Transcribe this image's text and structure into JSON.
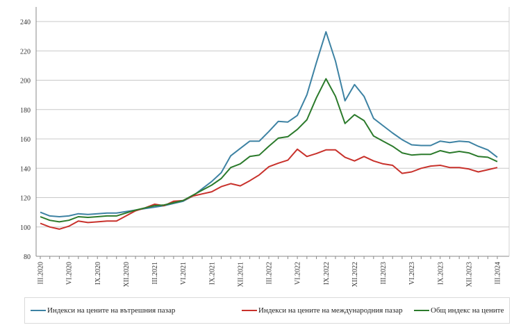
{
  "chart_data": {
    "type": "line",
    "title": "",
    "xlabel": "",
    "ylabel": "",
    "ylim": [
      80,
      240
    ],
    "yticks": [
      80,
      100,
      120,
      140,
      160,
      180,
      200,
      220,
      240
    ],
    "grid": true,
    "legend_position": "bottom",
    "x_start": "III.2020",
    "x_tick_labels": [
      "III.2020",
      "VI.2020",
      "IX.2020",
      "XII.2020",
      "III.2021",
      "VI.2021",
      "IX.2021",
      "XII.2021",
      "III.2022",
      "VI.2022",
      "IX.2022",
      "XII.2022",
      "III.2023",
      "VI.2023",
      "IX.2023",
      "XII.2023",
      "III.2024"
    ],
    "months_count": 49,
    "series": [
      {
        "name": "Индекси на цените на вътрешния пазар",
        "color": "#3d82a3",
        "values": [
          110,
          107.5,
          107,
          107.5,
          109,
          108.5,
          109,
          109.5,
          109.5,
          110.5,
          111.5,
          112.5,
          113.5,
          114.5,
          116,
          117.5,
          121,
          126,
          131,
          137,
          148.5,
          153.5,
          158.5,
          158.5,
          165,
          172,
          171.5,
          176,
          190,
          212,
          233,
          213,
          186,
          197,
          189,
          174,
          169,
          164,
          159.5,
          156,
          155.5,
          155.5,
          158.5,
          157.5,
          158.5,
          158,
          155,
          152.5,
          147.5
        ]
      },
      {
        "name": "Индекси на цените на международния пазар",
        "color": "#c8312b",
        "values": [
          102.5,
          100,
          98.5,
          100.5,
          104,
          103,
          103.5,
          104,
          104,
          107.5,
          111,
          113,
          115.5,
          114.5,
          117.5,
          118,
          121,
          122.5,
          124,
          127.5,
          129.5,
          128,
          131.5,
          135.5,
          141,
          143.5,
          145.5,
          153,
          148,
          150,
          152.5,
          152.5,
          147.5,
          145,
          148,
          145,
          143,
          142,
          136.5,
          137.5,
          140,
          141.5,
          142,
          140.5,
          140.5,
          139.5,
          137.5,
          139,
          140.5
        ]
      },
      {
        "name": "Общ индекс на цените",
        "color": "#2b7a2b",
        "values": [
          107,
          104.5,
          103.5,
          104.5,
          107,
          106.5,
          107,
          107.5,
          107.5,
          109.5,
          111.5,
          113,
          114.5,
          115,
          116.5,
          118,
          121.5,
          125,
          128.5,
          133,
          140.5,
          143,
          148,
          149,
          155,
          160.5,
          161.5,
          166.5,
          173,
          188,
          201,
          189,
          170.5,
          176.5,
          172.5,
          162,
          158.5,
          155,
          150.5,
          149,
          149.5,
          149.5,
          152,
          150.5,
          151.5,
          150.5,
          148,
          147.5,
          144.5
        ]
      }
    ]
  }
}
